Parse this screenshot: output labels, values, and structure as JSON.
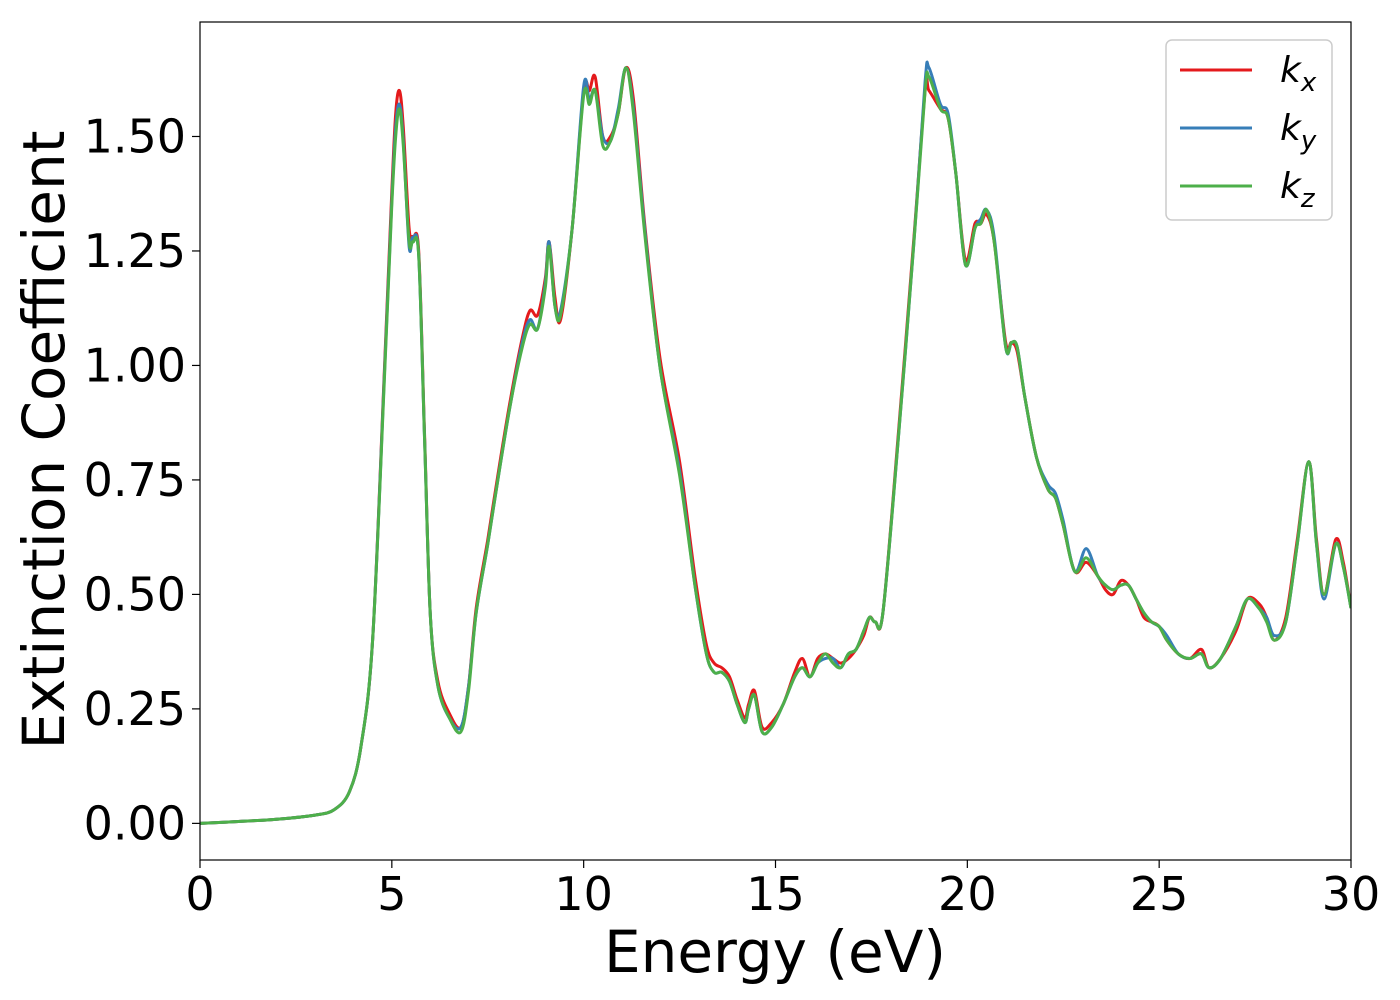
{
  "chart_data": {
    "type": "line",
    "title": "",
    "xlabel": "Energy (eV)",
    "ylabel": "Extinction Coefficient",
    "xlim": [
      0,
      30
    ],
    "ylim": [
      -0.08,
      1.75
    ],
    "xticks": [
      0,
      5,
      10,
      15,
      20,
      25,
      30
    ],
    "yticks": [
      0.0,
      0.25,
      0.5,
      0.75,
      1.0,
      1.25,
      1.5
    ],
    "xtick_labels": [
      "0",
      "5",
      "10",
      "15",
      "20",
      "25",
      "30"
    ],
    "ytick_labels": [
      "0.00",
      "0.25",
      "0.50",
      "0.75",
      "1.00",
      "1.25",
      "1.50"
    ],
    "grid": false,
    "legend_position": "top-right",
    "x": [
      0.0,
      1.0,
      2.0,
      3.0,
      3.5,
      3.9,
      4.2,
      4.5,
      4.8,
      5.0,
      5.1,
      5.2,
      5.3,
      5.45,
      5.55,
      5.7,
      5.85,
      6.0,
      6.2,
      6.5,
      6.8,
      7.0,
      7.2,
      7.5,
      7.8,
      8.1,
      8.4,
      8.6,
      8.8,
      9.0,
      9.1,
      9.25,
      9.4,
      9.7,
      10.0,
      10.15,
      10.3,
      10.5,
      10.7,
      10.9,
      11.1,
      11.3,
      11.6,
      12.0,
      12.5,
      12.9,
      13.2,
      13.4,
      13.6,
      13.8,
      14.0,
      14.2,
      14.3,
      14.45,
      14.65,
      14.9,
      15.2,
      15.5,
      15.7,
      15.9,
      16.1,
      16.3,
      16.5,
      16.7,
      16.9,
      17.1,
      17.3,
      17.45,
      17.6,
      17.8,
      18.2,
      18.6,
      18.9,
      19.0,
      19.3,
      19.5,
      19.7,
      19.95,
      20.2,
      20.35,
      20.5,
      20.7,
      21.0,
      21.15,
      21.3,
      21.5,
      21.8,
      22.1,
      22.3,
      22.5,
      22.8,
      23.1,
      23.4,
      23.6,
      23.8,
      24.0,
      24.2,
      24.4,
      24.6,
      24.8,
      25.0,
      25.2,
      25.5,
      25.8,
      26.1,
      26.3,
      26.6,
      27.0,
      27.3,
      27.6,
      27.8,
      28.0,
      28.3,
      28.6,
      28.9,
      29.1,
      29.3,
      29.6,
      29.8,
      30.0
    ],
    "series": [
      {
        "name": "k_x",
        "label_main": "k",
        "label_sub": "x",
        "color": "#e41a1c",
        "values": [
          0.0,
          0.004,
          0.009,
          0.018,
          0.03,
          0.07,
          0.17,
          0.4,
          0.98,
          1.38,
          1.55,
          1.6,
          1.52,
          1.3,
          1.28,
          1.25,
          0.86,
          0.46,
          0.31,
          0.24,
          0.21,
          0.3,
          0.47,
          0.62,
          0.78,
          0.93,
          1.06,
          1.12,
          1.11,
          1.19,
          1.27,
          1.15,
          1.1,
          1.3,
          1.6,
          1.6,
          1.63,
          1.5,
          1.5,
          1.55,
          1.65,
          1.58,
          1.3,
          1.01,
          0.79,
          0.54,
          0.39,
          0.35,
          0.34,
          0.32,
          0.27,
          0.23,
          0.26,
          0.29,
          0.21,
          0.22,
          0.26,
          0.33,
          0.36,
          0.32,
          0.36,
          0.37,
          0.36,
          0.35,
          0.36,
          0.38,
          0.41,
          0.45,
          0.44,
          0.46,
          0.85,
          1.27,
          1.6,
          1.6,
          1.56,
          1.54,
          1.42,
          1.23,
          1.31,
          1.31,
          1.33,
          1.27,
          1.05,
          1.05,
          1.03,
          0.93,
          0.8,
          0.73,
          0.71,
          0.65,
          0.55,
          0.57,
          0.54,
          0.51,
          0.5,
          0.53,
          0.52,
          0.49,
          0.45,
          0.44,
          0.43,
          0.4,
          0.37,
          0.36,
          0.38,
          0.34,
          0.36,
          0.42,
          0.49,
          0.48,
          0.45,
          0.4,
          0.45,
          0.62,
          0.79,
          0.62,
          0.5,
          0.62,
          0.57,
          0.47
        ]
      },
      {
        "name": "k_y",
        "label_main": "k",
        "label_sub": "y",
        "color": "#377eb8",
        "values": [
          0.0,
          0.004,
          0.009,
          0.018,
          0.03,
          0.07,
          0.17,
          0.4,
          0.97,
          1.36,
          1.52,
          1.57,
          1.49,
          1.26,
          1.28,
          1.24,
          0.85,
          0.46,
          0.3,
          0.23,
          0.21,
          0.3,
          0.46,
          0.61,
          0.77,
          0.92,
          1.05,
          1.1,
          1.08,
          1.18,
          1.27,
          1.13,
          1.12,
          1.3,
          1.61,
          1.58,
          1.6,
          1.5,
          1.49,
          1.56,
          1.65,
          1.56,
          1.29,
          0.99,
          0.77,
          0.52,
          0.37,
          0.33,
          0.33,
          0.31,
          0.26,
          0.22,
          0.25,
          0.28,
          0.2,
          0.21,
          0.26,
          0.32,
          0.34,
          0.32,
          0.35,
          0.36,
          0.36,
          0.34,
          0.37,
          0.38,
          0.42,
          0.45,
          0.44,
          0.46,
          0.84,
          1.26,
          1.62,
          1.65,
          1.57,
          1.55,
          1.42,
          1.22,
          1.3,
          1.32,
          1.34,
          1.28,
          1.04,
          1.05,
          1.04,
          0.93,
          0.8,
          0.74,
          0.72,
          0.66,
          0.55,
          0.6,
          0.54,
          0.52,
          0.51,
          0.52,
          0.52,
          0.49,
          0.46,
          0.44,
          0.43,
          0.41,
          0.37,
          0.36,
          0.37,
          0.34,
          0.36,
          0.43,
          0.49,
          0.47,
          0.45,
          0.41,
          0.44,
          0.61,
          0.79,
          0.61,
          0.49,
          0.61,
          0.56,
          0.47
        ]
      },
      {
        "name": "k_z",
        "label_main": "k",
        "label_sub": "z",
        "color": "#4daf4a",
        "values": [
          0.0,
          0.004,
          0.009,
          0.018,
          0.03,
          0.07,
          0.17,
          0.4,
          0.96,
          1.35,
          1.5,
          1.56,
          1.48,
          1.27,
          1.27,
          1.24,
          0.85,
          0.46,
          0.3,
          0.23,
          0.2,
          0.29,
          0.46,
          0.61,
          0.77,
          0.92,
          1.04,
          1.09,
          1.08,
          1.17,
          1.26,
          1.13,
          1.11,
          1.3,
          1.59,
          1.57,
          1.6,
          1.48,
          1.49,
          1.55,
          1.65,
          1.55,
          1.28,
          0.99,
          0.76,
          0.52,
          0.37,
          0.33,
          0.33,
          0.31,
          0.26,
          0.22,
          0.25,
          0.28,
          0.2,
          0.21,
          0.26,
          0.32,
          0.34,
          0.32,
          0.35,
          0.37,
          0.35,
          0.34,
          0.37,
          0.38,
          0.42,
          0.45,
          0.44,
          0.46,
          0.84,
          1.26,
          1.6,
          1.63,
          1.56,
          1.54,
          1.42,
          1.22,
          1.3,
          1.31,
          1.34,
          1.27,
          1.04,
          1.05,
          1.04,
          0.93,
          0.8,
          0.73,
          0.71,
          0.65,
          0.55,
          0.58,
          0.54,
          0.52,
          0.51,
          0.52,
          0.52,
          0.49,
          0.46,
          0.44,
          0.43,
          0.4,
          0.37,
          0.36,
          0.37,
          0.34,
          0.36,
          0.43,
          0.49,
          0.47,
          0.44,
          0.4,
          0.44,
          0.61,
          0.79,
          0.61,
          0.5,
          0.61,
          0.56,
          0.47
        ]
      }
    ]
  }
}
